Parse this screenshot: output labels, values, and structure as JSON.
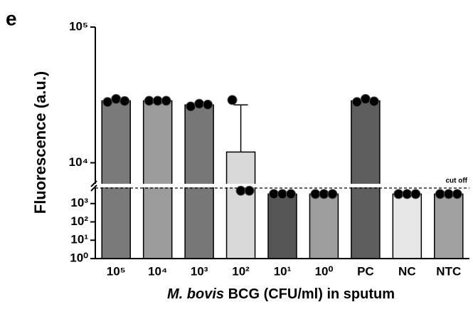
{
  "chart_data": {
    "type": "bar",
    "panel": "e",
    "ylabel": "Fluorescence (a.u.)",
    "xlabel_italic": "M. bovis",
    "xlabel": " BCG (CFU/ml) in sputum",
    "categories": [
      "10⁵",
      "10⁴",
      "10³",
      "10²",
      "10¹",
      "10⁰",
      "PC",
      "NC",
      "NTC"
    ],
    "values": [
      28600,
      28600,
      26700,
      12000,
      3300,
      3300,
      28600,
      3300,
      3300
    ],
    "errors": [
      null,
      null,
      null,
      14700,
      null,
      null,
      null,
      null,
      null
    ],
    "points": [
      [
        28000,
        29500,
        28500
      ],
      [
        28600,
        28600,
        28600
      ],
      [
        26000,
        27200,
        26800
      ],
      [
        29000,
        5000,
        5000
      ],
      [
        3300,
        3300,
        3300
      ],
      [
        3300,
        3300,
        3300
      ],
      [
        28000,
        29500,
        28300
      ],
      [
        3300,
        3300,
        3300
      ],
      [
        3300,
        3300,
        3300
      ]
    ],
    "colors": [
      "#7a7a7a",
      "#9b9b9b",
      "#777777",
      "#d9d9d9",
      "#555555",
      "#9e9e9e",
      "#5e5e5e",
      "#e6e6e6",
      "#a0a0a0"
    ],
    "log_scale": true,
    "ylim_upper": [
      7000,
      100000
    ],
    "yticks_upper": [
      {
        "value": 10000,
        "label": "10⁴"
      },
      {
        "value": 100000,
        "label": "10⁵"
      }
    ],
    "ylim_lower": [
      1,
      7000
    ],
    "yticks_lower": [
      {
        "value": 1,
        "label": "10⁰"
      },
      {
        "value": 10,
        "label": "10¹"
      },
      {
        "value": 100,
        "label": "10²"
      },
      {
        "value": 1000,
        "label": "10³"
      }
    ],
    "cutoff": {
      "value": 7000,
      "label": "cut off"
    }
  }
}
